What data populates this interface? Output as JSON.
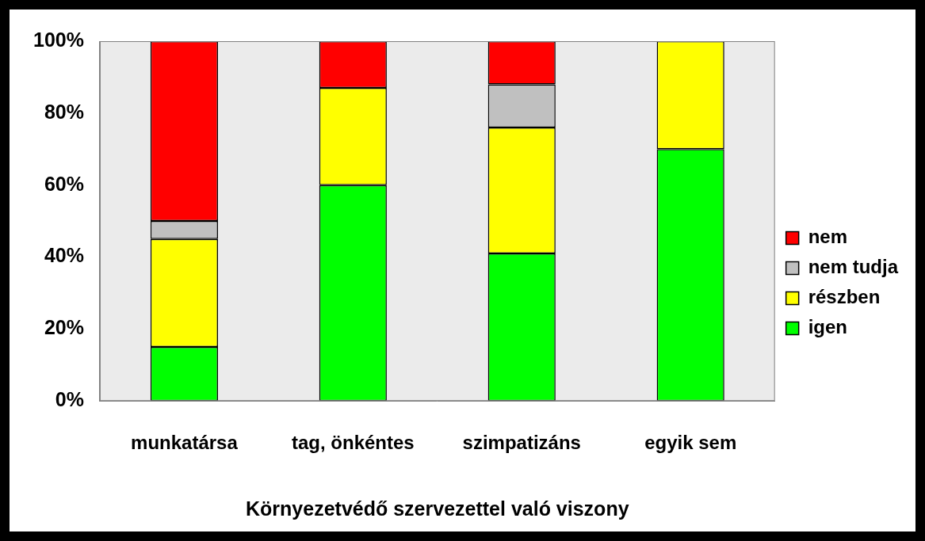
{
  "chart_data": {
    "type": "bar",
    "x_label": "Környezetvédő szervezettel való viszony",
    "categories": [
      "munkatársa",
      "tag, önkéntes",
      "szimpatizáns",
      "egyik sem"
    ],
    "series": [
      {
        "name": "igen",
        "color": "#00ff00",
        "values": [
          15,
          60,
          41,
          70
        ]
      },
      {
        "name": "részben",
        "color": "#ffff00",
        "values": [
          30,
          27,
          35,
          30
        ]
      },
      {
        "name": "nem tudja",
        "color": "#c0c0c0",
        "values": [
          5,
          0,
          12,
          0
        ]
      },
      {
        "name": "nem",
        "color": "#ff0000",
        "values": [
          50,
          13,
          12,
          0
        ]
      }
    ],
    "stacked": true,
    "ylim": [
      0,
      100
    ],
    "yticks": [
      {
        "value": 0,
        "label": "0%"
      },
      {
        "value": 20,
        "label": "20%"
      },
      {
        "value": 40,
        "label": "40%"
      },
      {
        "value": 60,
        "label": "60%"
      },
      {
        "value": 80,
        "label": "80%"
      },
      {
        "value": 100,
        "label": "100%"
      }
    ],
    "grid": false,
    "legend": "right"
  }
}
